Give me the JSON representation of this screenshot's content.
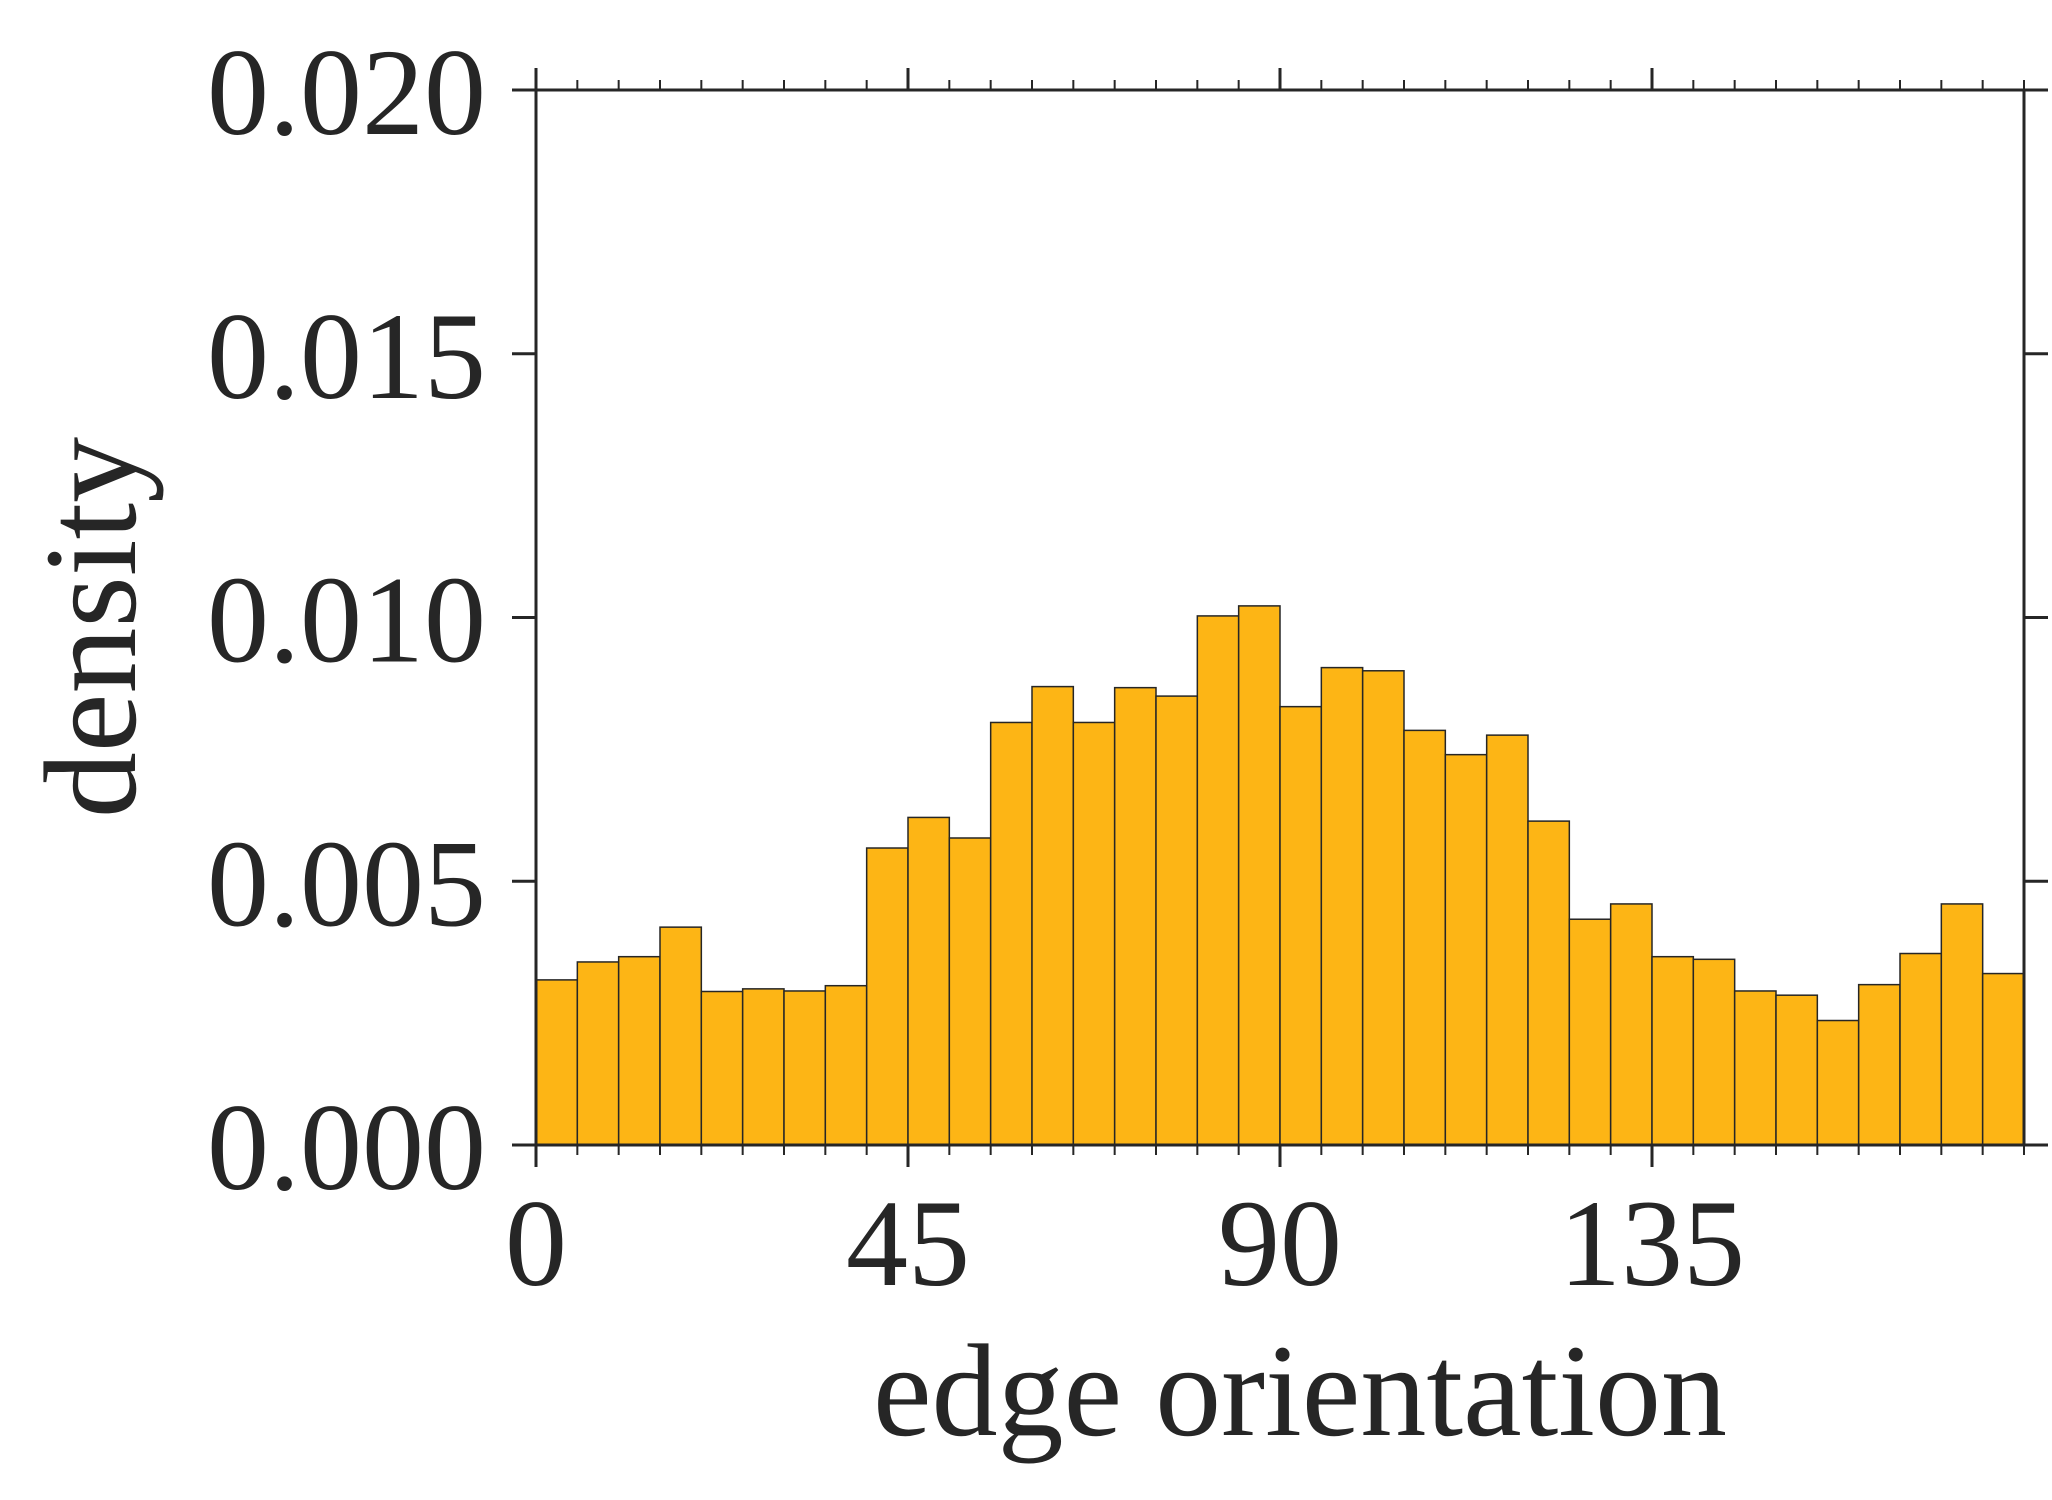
{
  "chart_data": {
    "type": "bar",
    "xlabel": "edge orientation",
    "ylabel": "density",
    "xlim": [
      0,
      180
    ],
    "ylim": [
      0,
      0.02
    ],
    "x_ticks": [
      0,
      45,
      90,
      135
    ],
    "x_tick_labels": [
      "0",
      "45",
      "90",
      "135"
    ],
    "y_ticks": [
      0,
      0.005,
      0.01,
      0.015,
      0.02
    ],
    "y_tick_labels": [
      "0.000",
      "0.005",
      "0.010",
      "0.015",
      "0.020"
    ],
    "bin_width": 5,
    "bin_starts": [
      0,
      5,
      10,
      15,
      20,
      25,
      30,
      35,
      40,
      45,
      50,
      55,
      60,
      65,
      70,
      75,
      80,
      85,
      90,
      95,
      100,
      105,
      110,
      115,
      120,
      125,
      130,
      135,
      140,
      145,
      150,
      155,
      160,
      165,
      170,
      175
    ],
    "values": [
      0.00313,
      0.00347,
      0.00357,
      0.00413,
      0.00291,
      0.00296,
      0.00292,
      0.00302,
      0.00563,
      0.00621,
      0.00582,
      0.00801,
      0.00869,
      0.00801,
      0.00867,
      0.00851,
      0.01003,
      0.01022,
      0.00831,
      0.00905,
      0.00899,
      0.00786,
      0.0074,
      0.00777,
      0.00614,
      0.00428,
      0.00457,
      0.00357,
      0.00352,
      0.00292,
      0.00284,
      0.00236,
      0.00304,
      0.00363,
      0.00457,
      0.00325
    ],
    "bar_color": "#FDB515",
    "bar_edge_color": "#262626",
    "grid": false,
    "legend": "none"
  }
}
